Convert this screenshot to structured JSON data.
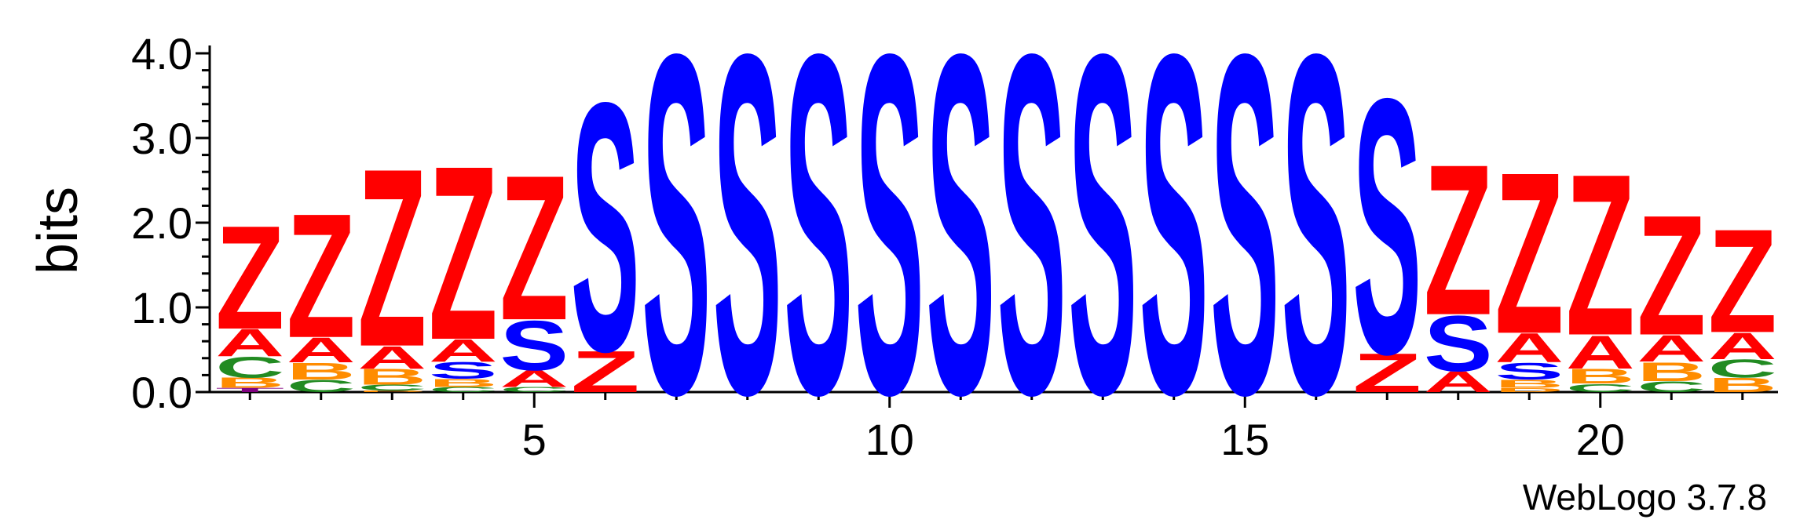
{
  "chart_data": {
    "type": "sequence-logo",
    "ylabel": "bits",
    "ylim": [
      0,
      4.0
    ],
    "yticks": [
      "0.0",
      "1.0",
      "2.0",
      "3.0",
      "4.0"
    ],
    "xtick_labels": [
      {
        "pos": 5,
        "label": "5"
      },
      {
        "pos": 10,
        "label": "10"
      },
      {
        "pos": 15,
        "label": "15"
      },
      {
        "pos": 20,
        "label": "20"
      }
    ],
    "positions": 22,
    "footer": "WebLogo 3.7.8",
    "colors": {
      "Z": "#ff0000",
      "A": "#ff0000",
      "S": "#0000ff",
      "C": "#228b22",
      "B": "#ff8c00",
      "D": "#ff8c00",
      "T": "#800080"
    },
    "columns": [
      [
        {
          "letter": "T",
          "bits": 0.05
        },
        {
          "letter": "B",
          "bits": 0.12
        },
        {
          "letter": "C",
          "bits": 0.25
        },
        {
          "letter": "A",
          "bits": 0.33
        },
        {
          "letter": "Z",
          "bits": 1.25
        }
      ],
      [
        {
          "letter": "C",
          "bits": 0.15
        },
        {
          "letter": "B",
          "bits": 0.2
        },
        {
          "letter": "A",
          "bits": 0.3
        },
        {
          "letter": "Z",
          "bits": 1.5
        }
      ],
      [
        {
          "letter": "D",
          "bits": 0.02
        },
        {
          "letter": "C",
          "bits": 0.07
        },
        {
          "letter": "B",
          "bits": 0.19
        },
        {
          "letter": "A",
          "bits": 0.27
        },
        {
          "letter": "Z",
          "bits": 2.15
        }
      ],
      [
        {
          "letter": "C",
          "bits": 0.06
        },
        {
          "letter": "B",
          "bits": 0.1
        },
        {
          "letter": "S",
          "bits": 0.2
        },
        {
          "letter": "A",
          "bits": 0.27
        },
        {
          "letter": "Z",
          "bits": 2.1
        }
      ],
      [
        {
          "letter": "C",
          "bits": 0.06
        },
        {
          "letter": "A",
          "bits": 0.2
        },
        {
          "letter": "S",
          "bits": 0.6
        },
        {
          "letter": "Z",
          "bits": 1.75
        }
      ],
      [
        {
          "letter": "Z",
          "bits": 0.5
        },
        {
          "letter": "S",
          "bits": 3.0
        }
      ],
      [
        {
          "letter": "S",
          "bits": 4.1
        }
      ],
      [
        {
          "letter": "S",
          "bits": 4.1
        }
      ],
      [
        {
          "letter": "S",
          "bits": 4.1
        }
      ],
      [
        {
          "letter": "S",
          "bits": 4.1
        }
      ],
      [
        {
          "letter": "S",
          "bits": 4.1
        }
      ],
      [
        {
          "letter": "S",
          "bits": 4.1
        }
      ],
      [
        {
          "letter": "S",
          "bits": 4.1
        }
      ],
      [
        {
          "letter": "S",
          "bits": 4.1
        }
      ],
      [
        {
          "letter": "S",
          "bits": 4.1
        }
      ],
      [
        {
          "letter": "S",
          "bits": 4.1
        }
      ],
      [
        {
          "letter": "Z",
          "bits": 0.47
        },
        {
          "letter": "S",
          "bits": 3.08
        }
      ],
      [
        {
          "letter": "A",
          "bits": 0.25
        },
        {
          "letter": "S",
          "bits": 0.67
        },
        {
          "letter": "Z",
          "bits": 1.82
        }
      ],
      [
        {
          "letter": "D",
          "bits": 0.05
        },
        {
          "letter": "B",
          "bits": 0.1
        },
        {
          "letter": "S",
          "bits": 0.2
        },
        {
          "letter": "A",
          "bits": 0.35
        },
        {
          "letter": "Z",
          "bits": 1.95
        }
      ],
      [
        {
          "letter": "C",
          "bits": 0.1
        },
        {
          "letter": "B",
          "bits": 0.18
        },
        {
          "letter": "A",
          "bits": 0.4
        },
        {
          "letter": "Z",
          "bits": 1.95
        }
      ],
      [
        {
          "letter": "C",
          "bits": 0.13
        },
        {
          "letter": "B",
          "bits": 0.23
        },
        {
          "letter": "A",
          "bits": 0.32
        },
        {
          "letter": "Z",
          "bits": 1.45
        }
      ],
      [
        {
          "letter": "B",
          "bits": 0.17
        },
        {
          "letter": "C",
          "bits": 0.22
        },
        {
          "letter": "A",
          "bits": 0.32
        },
        {
          "letter": "Z",
          "bits": 1.25
        }
      ]
    ]
  }
}
